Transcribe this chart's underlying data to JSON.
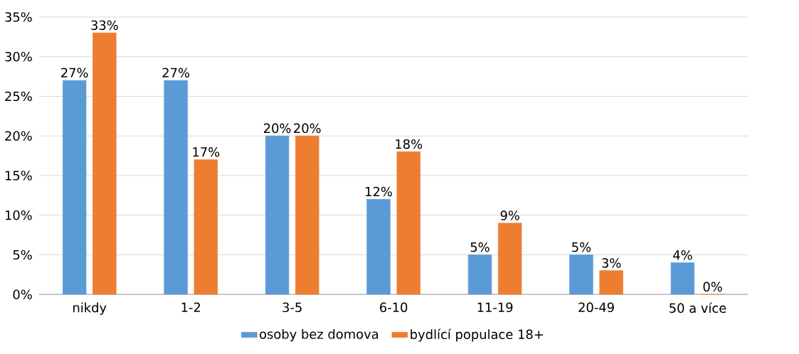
{
  "chart_data": {
    "type": "bar",
    "categories": [
      "nikdy",
      "1-2",
      "3-5",
      "6-10",
      "11-19",
      "20-49",
      "50 a více"
    ],
    "series": [
      {
        "name": "osoby bez domova",
        "color": "#5b9bd5",
        "values": [
          27,
          27,
          20,
          12,
          5,
          5,
          4
        ],
        "value_labels": [
          "27%",
          "27%",
          "20%",
          "12%",
          "5%",
          "5%",
          "4%"
        ]
      },
      {
        "name": "bydlící populace 18+",
        "color": "#ed7d31",
        "values": [
          33,
          17,
          20,
          18,
          9,
          3,
          0
        ],
        "value_labels": [
          "33%",
          "17%",
          "20%",
          "18%",
          "9%",
          "3%",
          "0%"
        ]
      }
    ],
    "ylim": [
      0,
      35
    ],
    "yticks": [
      {
        "value": 0,
        "label": "0%"
      },
      {
        "value": 5,
        "label": "5%"
      },
      {
        "value": 10,
        "label": "10%"
      },
      {
        "value": 15,
        "label": "15%"
      },
      {
        "value": 20,
        "label": "20%"
      },
      {
        "value": 25,
        "label": "25%"
      },
      {
        "value": 30,
        "label": "30%"
      },
      {
        "value": 35,
        "label": "35%"
      }
    ],
    "grid": "y",
    "legend": "bottom"
  }
}
